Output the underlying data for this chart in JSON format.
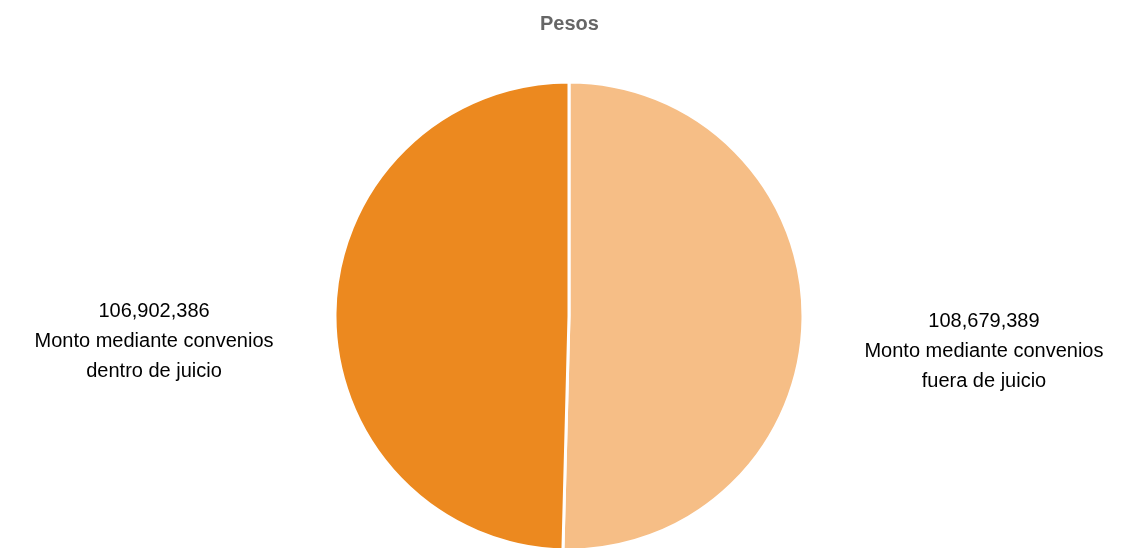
{
  "chart_data": {
    "type": "pie",
    "title": "Pesos",
    "categories": [
      "Monto mediante convenios fuera de juicio",
      "Monto mediante convenios dentro de juicio"
    ],
    "values": [
      108679389,
      106902386
    ],
    "colors": [
      "#f6be86",
      "#ec891f"
    ],
    "value_labels": [
      "108,679,389",
      "106,902,386"
    ],
    "legend": false
  }
}
